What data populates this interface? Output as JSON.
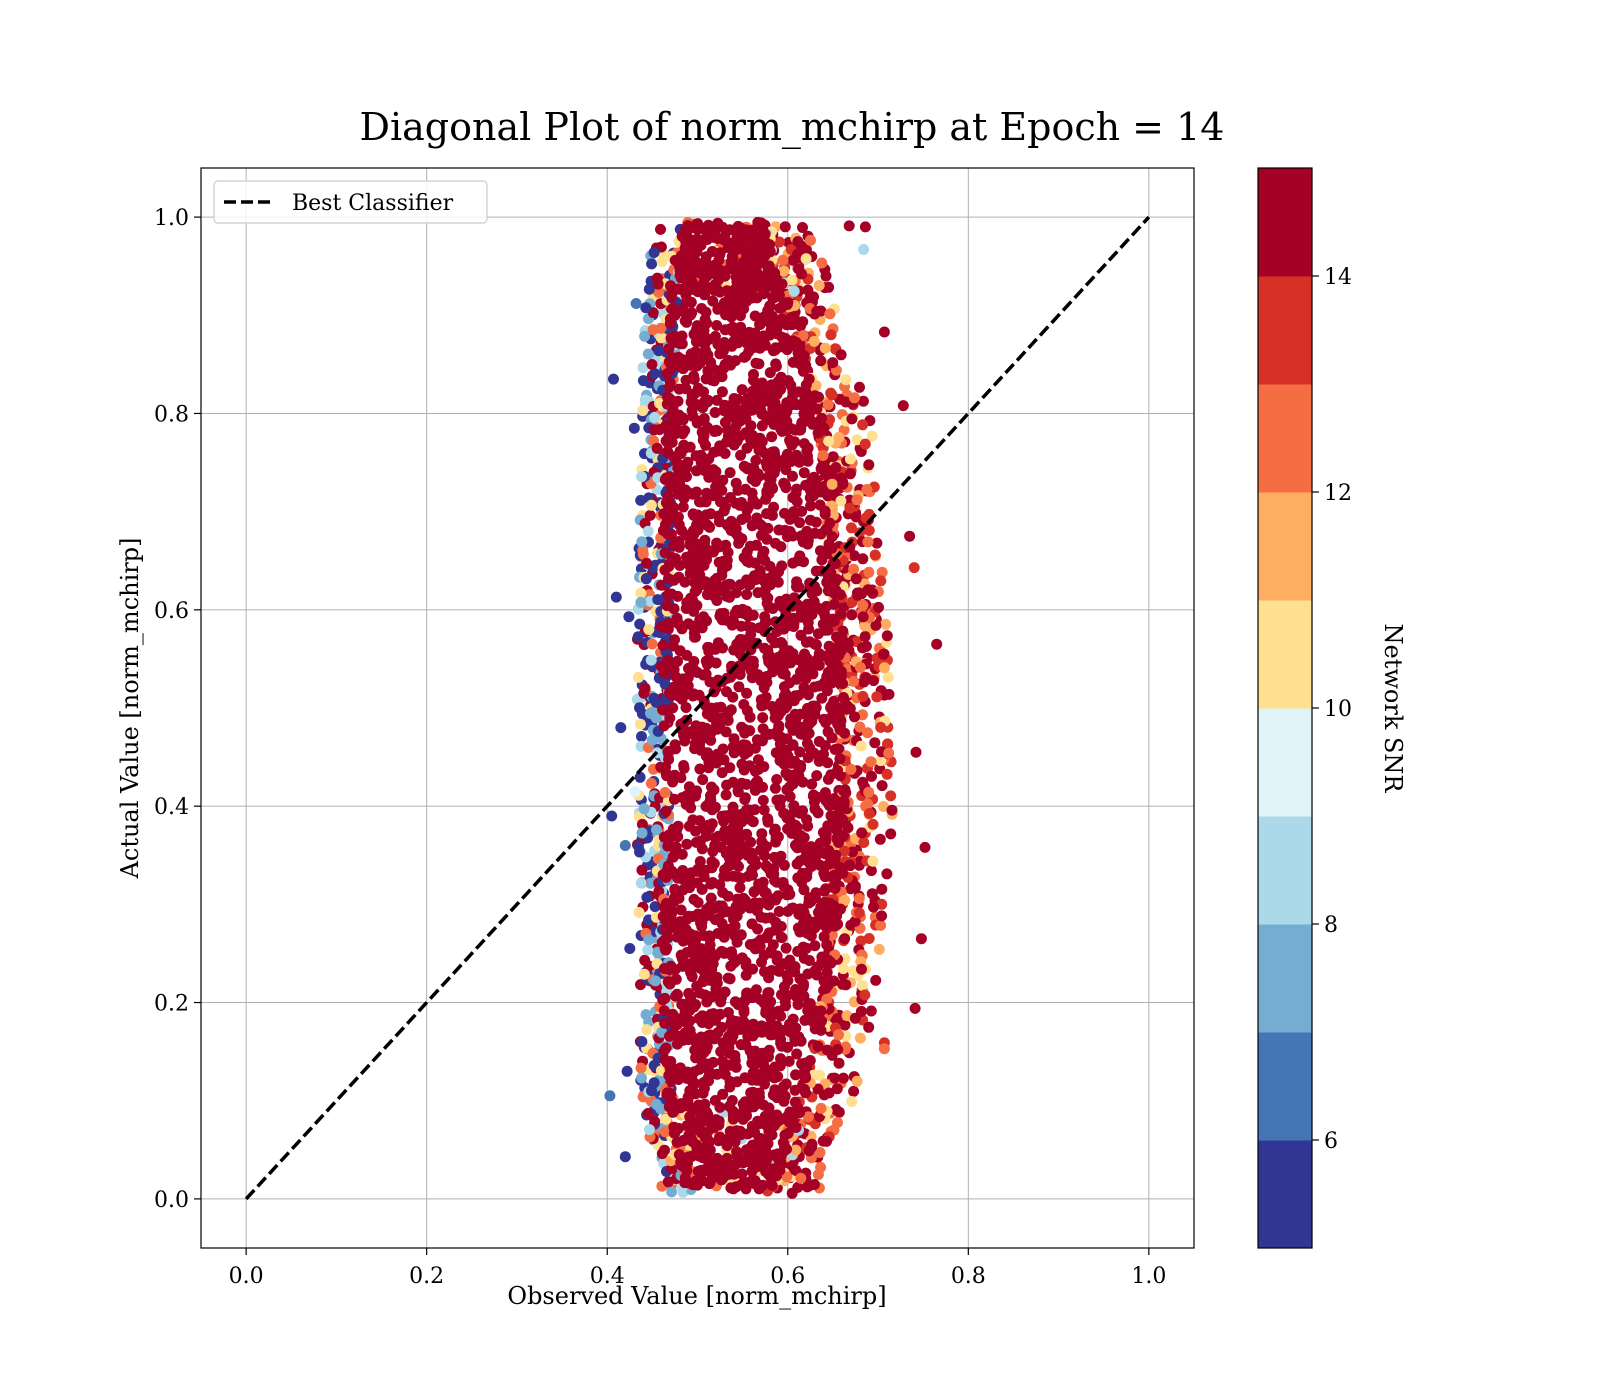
{
  "chart_data": {
    "type": "scatter",
    "title": "Diagonal Plot of norm_mchirp at Epoch = 14",
    "xlabel": "Observed Value [norm_mchirp]",
    "ylabel": "Actual Value [norm_mchirp]",
    "xlim": [
      -0.05,
      1.05
    ],
    "ylim": [
      -0.05,
      1.05
    ],
    "xticks": [
      "0.0",
      "0.2",
      "0.4",
      "0.6",
      "0.8",
      "1.0"
    ],
    "yticks": [
      "0.0",
      "0.2",
      "0.4",
      "0.6",
      "0.8",
      "1.0"
    ],
    "grid": true,
    "legend": {
      "placement": "upper-left",
      "entries": [
        {
          "label": "Best Classifier",
          "style": "dashed",
          "color": "#000000"
        }
      ]
    },
    "reference_line": {
      "name": "Best Classifier",
      "x": [
        0.0,
        1.0
      ],
      "y": [
        0.0,
        1.0
      ]
    },
    "colorbar": {
      "label": "Network SNR",
      "range": [
        5,
        15
      ],
      "ticks": [
        "6",
        "8",
        "10",
        "12",
        "14"
      ],
      "colors": [
        "#313695",
        "#4575b4",
        "#74add1",
        "#abd9e9",
        "#e0f3f8",
        "#fee090",
        "#fdae61",
        "#f46d43",
        "#d73027",
        "#a50026"
      ]
    },
    "point_cloud": {
      "x_range": [
        0.4,
        0.77
      ],
      "y_range": [
        0.0,
        1.0
      ],
      "dominant_snr": 15,
      "dense_core": [
        {
          "y": 0.0,
          "x_left": 0.49,
          "x_right": 0.58
        },
        {
          "y": 0.1,
          "x_left": 0.465,
          "x_right": 0.62
        },
        {
          "y": 0.2,
          "x_left": 0.46,
          "x_right": 0.645
        },
        {
          "y": 0.4,
          "x_left": 0.46,
          "x_right": 0.665
        },
        {
          "y": 0.6,
          "x_left": 0.46,
          "x_right": 0.66
        },
        {
          "y": 0.8,
          "x_left": 0.465,
          "x_right": 0.64
        },
        {
          "y": 0.95,
          "x_left": 0.47,
          "x_right": 0.59
        },
        {
          "y": 1.0,
          "x_left": 0.49,
          "x_right": 0.57
        }
      ],
      "outliers": [
        {
          "x": 0.407,
          "y": 0.835,
          "snr": 5
        },
        {
          "x": 0.41,
          "y": 0.613,
          "snr": 5
        },
        {
          "x": 0.405,
          "y": 0.39,
          "snr": 5
        },
        {
          "x": 0.403,
          "y": 0.105,
          "snr": 6
        },
        {
          "x": 0.432,
          "y": 0.912,
          "snr": 6
        },
        {
          "x": 0.43,
          "y": 0.785,
          "snr": 5
        },
        {
          "x": 0.424,
          "y": 0.593,
          "snr": 5
        },
        {
          "x": 0.415,
          "y": 0.48,
          "snr": 5
        },
        {
          "x": 0.42,
          "y": 0.36,
          "snr": 6
        },
        {
          "x": 0.425,
          "y": 0.255,
          "snr": 5
        },
        {
          "x": 0.422,
          "y": 0.13,
          "snr": 5
        },
        {
          "x": 0.42,
          "y": 0.043,
          "snr": 5
        },
        {
          "x": 0.431,
          "y": 0.415,
          "snr": 9
        },
        {
          "x": 0.765,
          "y": 0.565,
          "snr": 15
        },
        {
          "x": 0.752,
          "y": 0.358,
          "snr": 15
        },
        {
          "x": 0.748,
          "y": 0.265,
          "snr": 15
        },
        {
          "x": 0.741,
          "y": 0.194,
          "snr": 15
        },
        {
          "x": 0.742,
          "y": 0.455,
          "snr": 15
        },
        {
          "x": 0.74,
          "y": 0.643,
          "snr": 13
        },
        {
          "x": 0.728,
          "y": 0.808,
          "snr": 14
        },
        {
          "x": 0.707,
          "y": 0.159,
          "snr": 13
        },
        {
          "x": 0.707,
          "y": 0.153,
          "snr": 12
        },
        {
          "x": 0.686,
          "y": 0.99,
          "snr": 15
        },
        {
          "x": 0.684,
          "y": 0.967,
          "snr": 8
        },
        {
          "x": 0.668,
          "y": 0.991,
          "snr": 14
        },
        {
          "x": 0.707,
          "y": 0.883,
          "snr": 15
        },
        {
          "x": 0.735,
          "y": 0.675,
          "snr": 15
        }
      ]
    }
  }
}
